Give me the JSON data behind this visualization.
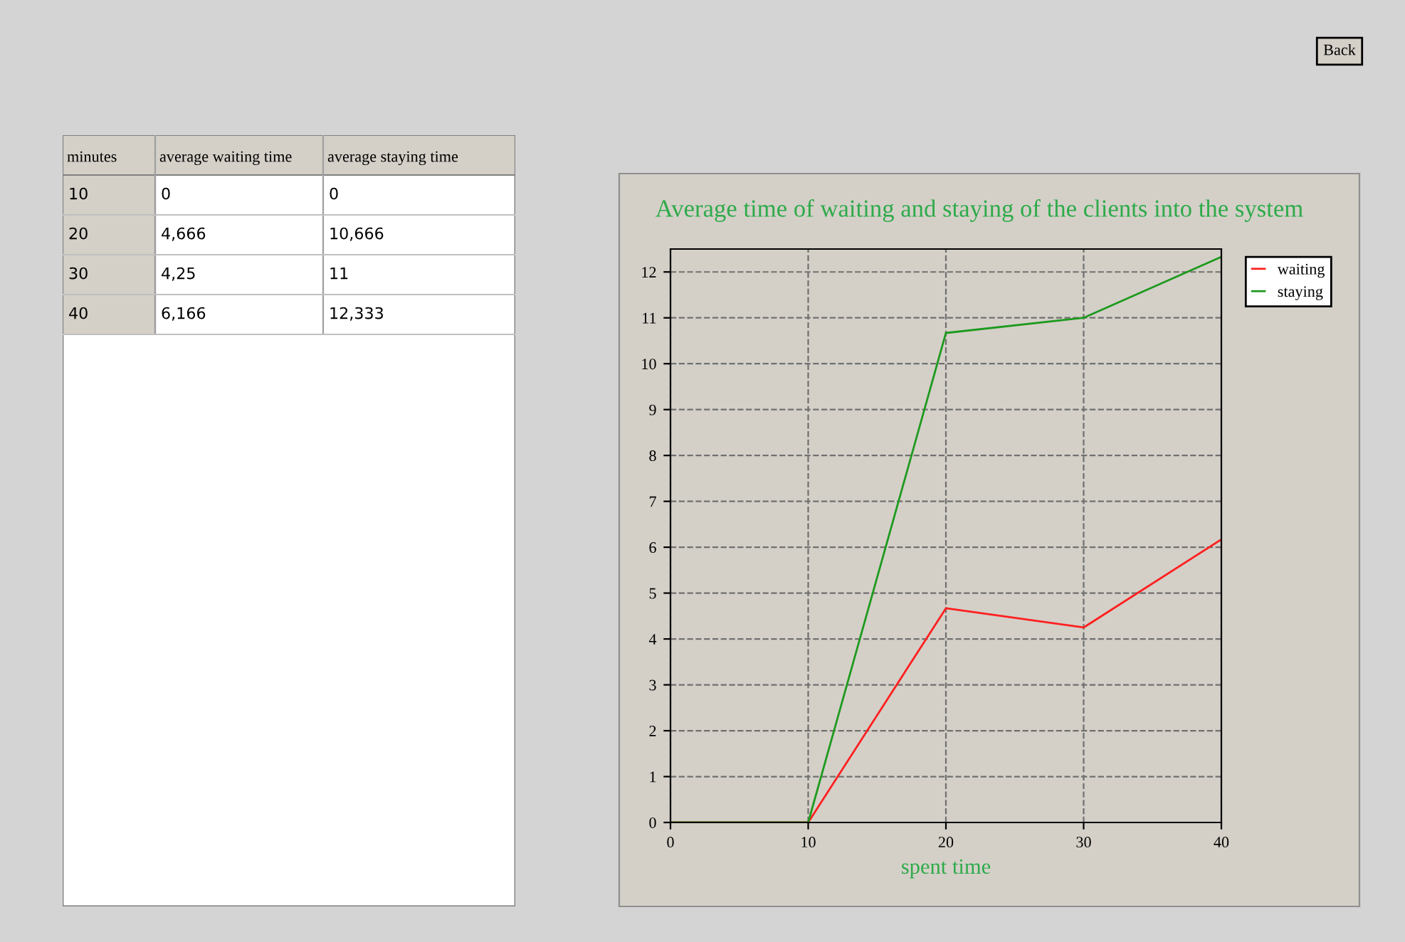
{
  "chart_data": {
    "type": "line",
    "title": "Average time of waiting and staying of the clients into the system",
    "xlabel": "spent time",
    "x": [
      0,
      10,
      20,
      30,
      40
    ],
    "series": [
      {
        "name": "waiting",
        "color": "#ff2020",
        "values": [
          0,
          0,
          4.67,
          4.25,
          6.17
        ]
      },
      {
        "name": "staying",
        "color": "#1e9a1e",
        "values": [
          0,
          0,
          10.67,
          11,
          12.33
        ]
      }
    ],
    "annotations": [
      "minutes",
      "average waiting time",
      "average staying time",
      "10",
      "0",
      "0",
      "20",
      "4,666",
      "10,666",
      "30",
      "4,25",
      "11",
      "40",
      "6,166",
      "12,333",
      "Back"
    ],
    "xlim": [
      0,
      40
    ],
    "xticks": [
      0,
      10,
      20,
      30,
      40
    ],
    "ylim": [
      0,
      12.5
    ],
    "yticks": [
      0,
      1,
      2,
      3,
      4,
      5,
      6,
      7,
      8,
      9,
      10,
      11,
      12
    ],
    "grid": true,
    "legend": "top right",
    "marker": "none"
  }
}
